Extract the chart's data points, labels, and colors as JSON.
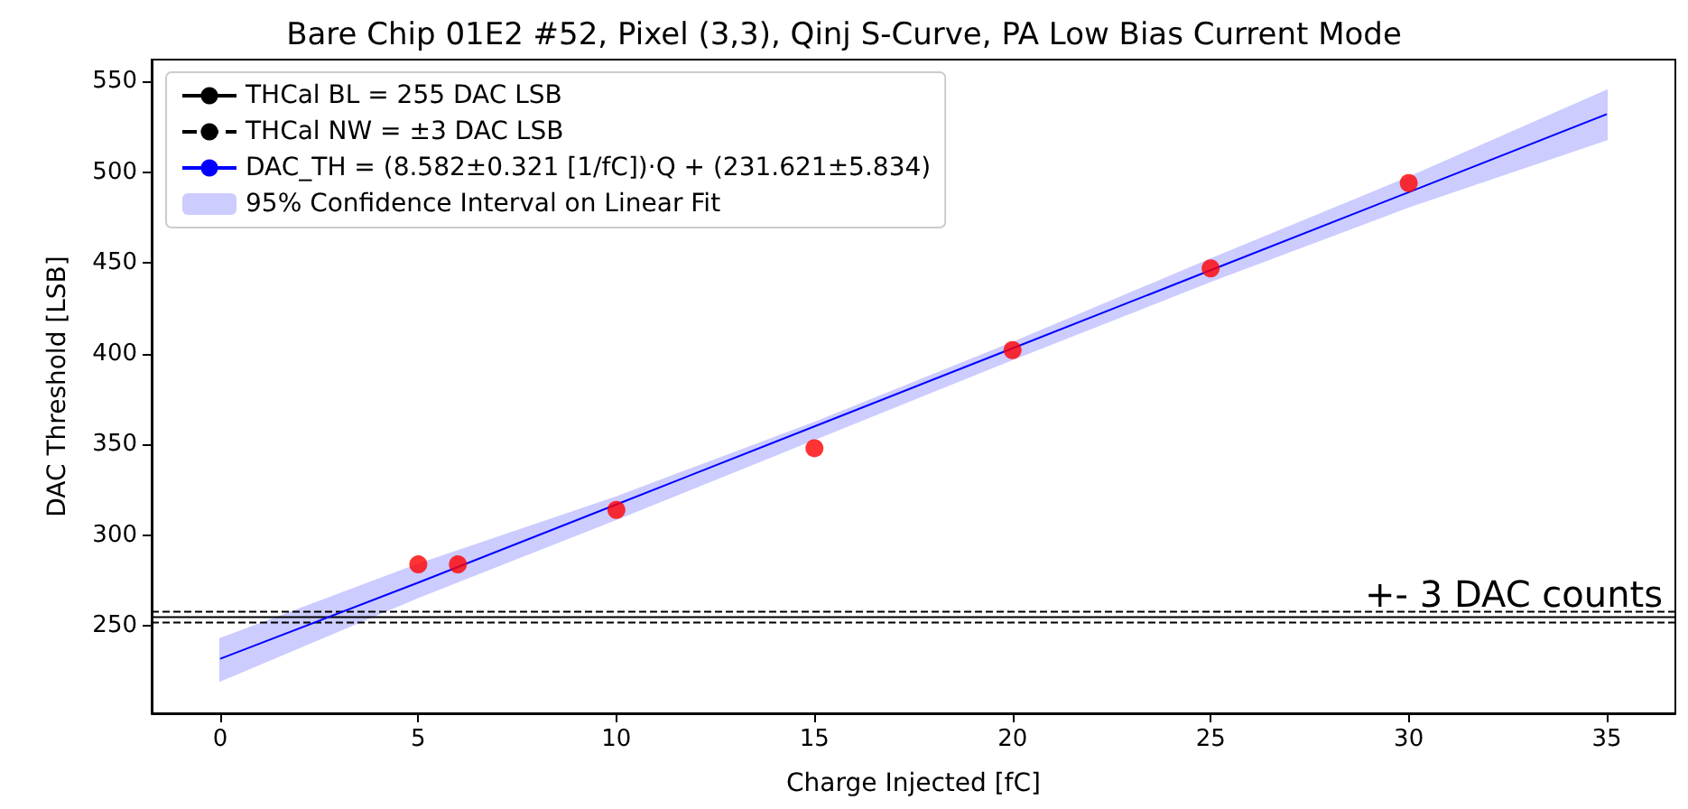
{
  "chart_data": {
    "type": "scatter",
    "title": "Bare Chip 01E2 #52, Pixel (3,3), Qinj S-Curve, PA Low Bias Current Mode",
    "xlabel": "Charge Injected [fC]",
    "ylabel": "DAC Threshold [LSB]",
    "xlim": [
      -1.73,
      36.73
    ],
    "xticks": [
      0,
      5,
      10,
      15,
      20,
      25,
      30,
      35
    ],
    "ylim": [
      202,
      562
    ],
    "yticks": [
      250,
      300,
      350,
      400,
      450,
      500,
      550
    ],
    "grid": false,
    "legend": "top left",
    "series": [
      {
        "type": "line",
        "name": "DAC_TH = (8.582±0.321 [1/fC])·Q + (231.621±5.834)",
        "color": "#0000ff",
        "x": [
          0,
          5,
          10,
          15,
          20,
          25,
          30,
          35
        ],
        "values": [
          232,
          274,
          317,
          360,
          403,
          446,
          489,
          532
        ],
        "lower": [
          220,
          266,
          309,
          353,
          397,
          440,
          481,
          518
        ],
        "upper": [
          243,
          284,
          321,
          362,
          406,
          452,
          497,
          545
        ]
      },
      {
        "type": "area",
        "name": "95% Confidence Interval on Linear Fit",
        "color": "#ccccff"
      },
      {
        "color": "#ff0000",
        "marker": "circle",
        "x": [
          5,
          6,
          10,
          15,
          20,
          25,
          30
        ],
        "values": [
          284,
          284,
          314,
          348,
          402,
          447,
          494
        ]
      }
    ],
    "ref_lines": [
      {
        "axis": "y",
        "value": 255,
        "label": "THCal BL = 255 DAC LSB",
        "color": "#000000",
        "line_style": "solid"
      },
      {
        "axis": "y",
        "value": 252,
        "label": "THCal NW = ±3 DAC LSB",
        "color": "#000000",
        "line_style": "dashed"
      },
      {
        "axis": "y",
        "value": 258,
        "color": "#000000",
        "line_style": "dashed"
      }
    ],
    "annotations": [
      "+- 3 DAC counts"
    ]
  }
}
